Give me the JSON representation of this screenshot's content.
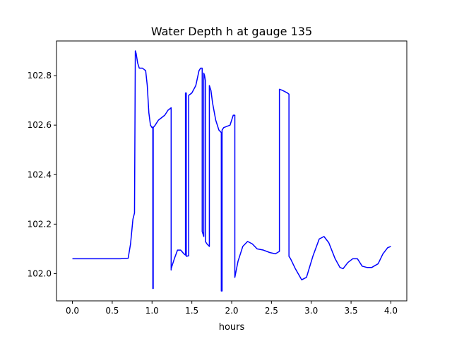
{
  "chart_data": {
    "type": "line",
    "title": "Water Depth h at gauge 135",
    "xlabel": "hours",
    "ylabel": "",
    "xlim": [
      -0.2,
      4.2
    ],
    "ylim": [
      101.89,
      102.94
    ],
    "xticks": [
      0.0,
      0.5,
      1.0,
      1.5,
      2.0,
      2.5,
      3.0,
      3.5,
      4.0
    ],
    "xtick_labels": [
      "0.0",
      "0.5",
      "1.0",
      "1.5",
      "2.0",
      "2.5",
      "3.0",
      "3.5",
      "4.0"
    ],
    "yticks": [
      102.0,
      102.2,
      102.4,
      102.6,
      102.8
    ],
    "ytick_labels": [
      "102.0",
      "102.2",
      "102.4",
      "102.6",
      "102.8"
    ],
    "grid": false,
    "series": [
      {
        "color": "#0000ff",
        "x": [
          0.0,
          0.3,
          0.6,
          0.7,
          0.73,
          0.76,
          0.78,
          0.79,
          0.79,
          0.8,
          0.82,
          0.84,
          0.88,
          0.92,
          0.94,
          0.96,
          0.98,
          1.0,
          1.01,
          1.01,
          1.015,
          1.015,
          1.04,
          1.08,
          1.12,
          1.16,
          1.2,
          1.24,
          1.24,
          1.24,
          1.28,
          1.32,
          1.36,
          1.4,
          1.42,
          1.42,
          1.43,
          1.43,
          1.46,
          1.46,
          1.5,
          1.55,
          1.59,
          1.61,
          1.63,
          1.63,
          1.65,
          1.65,
          1.66,
          1.67,
          1.67,
          1.69,
          1.72,
          1.72,
          1.74,
          1.76,
          1.8,
          1.84,
          1.87,
          1.87,
          1.88,
          1.88,
          1.9,
          1.94,
          1.98,
          2.02,
          2.04,
          2.04,
          2.08,
          2.14,
          2.2,
          2.26,
          2.32,
          2.4,
          2.48,
          2.55,
          2.6,
          2.6,
          2.64,
          2.7,
          2.72,
          2.72,
          2.74,
          2.8,
          2.88,
          2.94,
          3.02,
          3.1,
          3.16,
          3.22,
          3.3,
          3.36,
          3.4,
          3.46,
          3.52,
          3.58,
          3.64,
          3.7,
          3.76,
          3.84,
          3.9,
          3.96,
          4.0
        ],
        "y": [
          102.06,
          102.06,
          102.06,
          102.062,
          102.12,
          102.22,
          102.245,
          102.895,
          102.9,
          102.89,
          102.85,
          102.83,
          102.83,
          102.82,
          102.76,
          102.65,
          102.6,
          102.59,
          102.592,
          101.94,
          101.94,
          102.59,
          102.6,
          102.62,
          102.63,
          102.64,
          102.66,
          102.67,
          102.015,
          102.02,
          102.06,
          102.095,
          102.095,
          102.08,
          102.075,
          102.73,
          102.73,
          102.07,
          102.072,
          102.72,
          102.73,
          102.76,
          102.82,
          102.83,
          102.83,
          102.17,
          102.15,
          102.81,
          102.8,
          102.78,
          102.13,
          102.12,
          102.11,
          102.76,
          102.74,
          102.69,
          102.62,
          102.58,
          102.57,
          101.93,
          101.93,
          102.58,
          102.59,
          102.595,
          102.6,
          102.64,
          102.64,
          101.985,
          102.05,
          102.11,
          102.13,
          102.12,
          102.1,
          102.095,
          102.085,
          102.08,
          102.09,
          102.745,
          102.74,
          102.73,
          102.725,
          102.07,
          102.06,
          102.02,
          101.975,
          101.985,
          102.07,
          102.14,
          102.15,
          102.125,
          102.06,
          102.025,
          102.02,
          102.045,
          102.06,
          102.06,
          102.03,
          102.025,
          102.025,
          102.04,
          102.08,
          102.105,
          102.11
        ]
      }
    ]
  }
}
